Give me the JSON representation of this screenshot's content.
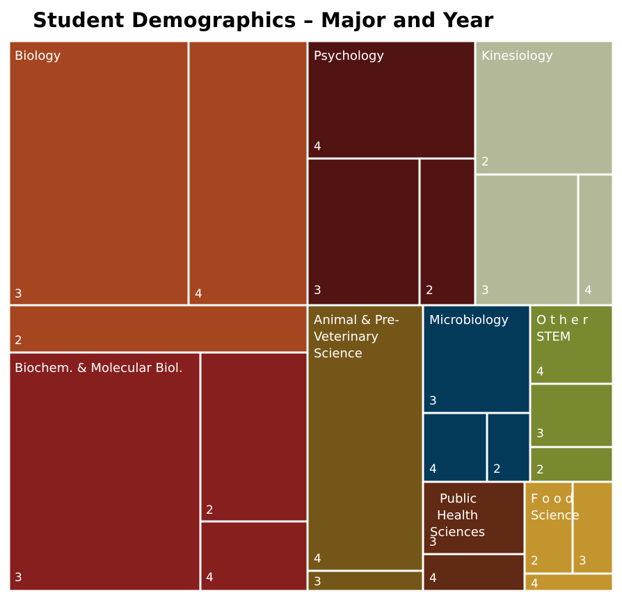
{
  "title": "Student Demographics – Major and Year",
  "chart_data": {
    "type": "treemap",
    "title": "Student Demographics – Major and Year",
    "groups": [
      {
        "major": "Biology",
        "color": "#A54621",
        "label_lines": [
          "Biology"
        ],
        "children": [
          {
            "year": "3"
          },
          {
            "year": "4"
          },
          {
            "year": "2"
          }
        ]
      },
      {
        "major": "Biochem. & Molecular Biol.",
        "color": "#861F1D",
        "label_lines": [
          "Biochem. & Molecular Biol."
        ],
        "children": [
          {
            "year": "3"
          },
          {
            "year": "2"
          },
          {
            "year": "4"
          }
        ]
      },
      {
        "major": "Psychology",
        "color": "#521413",
        "label_lines": [
          "Psychology"
        ],
        "children": [
          {
            "year": "4"
          },
          {
            "year": "3"
          },
          {
            "year": "2"
          }
        ]
      },
      {
        "major": "Kinesiology",
        "color": "#B3B898",
        "label_lines": [
          "Kinesiology"
        ],
        "children": [
          {
            "year": "2"
          },
          {
            "year": "3"
          },
          {
            "year": "4"
          }
        ]
      },
      {
        "major": "Animal & Pre-Veterinary Science",
        "color": "#745718",
        "label_lines": [
          "Animal & Pre-",
          "Veterinary",
          "Science"
        ],
        "children": [
          {
            "year": "4"
          },
          {
            "year": "3"
          }
        ]
      },
      {
        "major": "Microbiology",
        "color": "#043A59",
        "label_lines": [
          "Microbiology"
        ],
        "children": [
          {
            "year": "3"
          },
          {
            "year": "4"
          },
          {
            "year": "2"
          }
        ]
      },
      {
        "major": "Other STEM",
        "color": "#798930",
        "label_lines": [
          "O t h e r",
          "STEM"
        ],
        "children": [
          {
            "year": "4"
          },
          {
            "year": "3"
          },
          {
            "year": "2"
          }
        ]
      },
      {
        "major": "Public Health Sciences",
        "color": "#612A14",
        "label_lines": [
          "Public",
          "Health",
          "Sciences"
        ],
        "children": [
          {
            "year": "3"
          },
          {
            "year": "4"
          }
        ]
      },
      {
        "major": "Food Science",
        "color": "#C3952E",
        "label_lines": [
          "F o o d",
          "Science"
        ],
        "children": [
          {
            "year": "2"
          },
          {
            "year": "3"
          },
          {
            "year": "4"
          }
        ]
      }
    ]
  }
}
